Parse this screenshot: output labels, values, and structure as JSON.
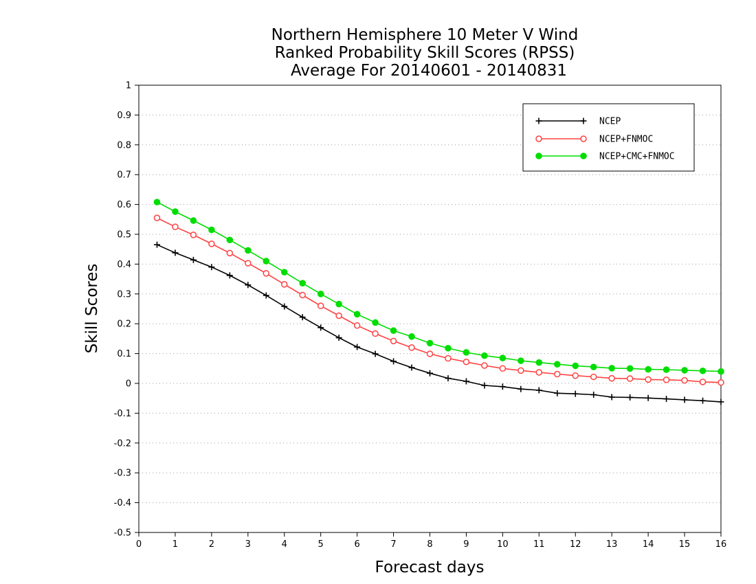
{
  "chart_data": {
    "type": "line",
    "title_lines": [
      "Northern Hemisphere 10 Meter V Wind",
      "Ranked Probability Skill Scores (RPSS)",
      "Average For 20140601 - 20140831"
    ],
    "xlabel": "Forecast days",
    "ylabel": "Skill Scores",
    "xlim": [
      0,
      16
    ],
    "ylim": [
      -0.5,
      1
    ],
    "x_ticks": [
      0,
      1,
      2,
      3,
      4,
      5,
      6,
      7,
      8,
      9,
      10,
      11,
      12,
      13,
      14,
      15,
      16
    ],
    "x_tick_labels": [
      "0",
      "1",
      "2",
      "3",
      "4",
      "5",
      "6",
      "7",
      "8",
      "9",
      "10",
      "11",
      "12",
      "13",
      "14",
      "15",
      "16"
    ],
    "y_ticks": [
      -0.5,
      -0.4,
      -0.3,
      -0.2,
      -0.1,
      0,
      0.1,
      0.2,
      0.3,
      0.4,
      0.5,
      0.6,
      0.7,
      0.8,
      0.9,
      1
    ],
    "y_tick_labels": [
      "-0.5",
      "-0.4",
      "-0.3",
      "-0.2",
      "-0.1",
      "0",
      "0.1",
      "0.2",
      "0.3",
      "0.4",
      "0.5",
      "0.6",
      "0.7",
      "0.8",
      "0.9",
      "1"
    ],
    "grid": "horizontal-dotted",
    "legend_position": "top-right",
    "x": [
      0.5,
      1,
      1.5,
      2,
      2.5,
      3,
      3.5,
      4,
      4.5,
      5,
      5.5,
      6,
      6.5,
      7,
      7.5,
      8,
      8.5,
      9,
      9.5,
      10,
      10.5,
      11,
      11.5,
      12,
      12.5,
      13,
      13.5,
      14,
      14.5,
      15,
      15.5,
      16
    ],
    "series": [
      {
        "name": "NCEP",
        "color": "#000000",
        "marker": "plus",
        "values": [
          0.465,
          0.438,
          0.414,
          0.39,
          0.362,
          0.33,
          0.295,
          0.258,
          0.222,
          0.187,
          0.153,
          0.122,
          0.099,
          0.074,
          0.053,
          0.034,
          0.017,
          0.007,
          -0.007,
          -0.011,
          -0.019,
          -0.023,
          -0.033,
          -0.035,
          -0.038,
          -0.046,
          -0.047,
          -0.049,
          -0.052,
          -0.055,
          -0.058,
          -0.062
        ]
      },
      {
        "name": "NCEP+FNMOC",
        "color": "#ff4040",
        "marker": "open-circle",
        "values": [
          0.555,
          0.525,
          0.498,
          0.468,
          0.437,
          0.403,
          0.369,
          0.332,
          0.296,
          0.26,
          0.227,
          0.194,
          0.167,
          0.142,
          0.12,
          0.099,
          0.084,
          0.072,
          0.06,
          0.05,
          0.043,
          0.037,
          0.031,
          0.026,
          0.022,
          0.017,
          0.016,
          0.013,
          0.012,
          0.01,
          0.005,
          0.003
        ]
      },
      {
        "name": "NCEP+CMC+FNMOC",
        "color": "#00dd00",
        "marker": "filled-circle",
        "values": [
          0.608,
          0.576,
          0.546,
          0.515,
          0.481,
          0.446,
          0.41,
          0.373,
          0.336,
          0.3,
          0.266,
          0.232,
          0.204,
          0.177,
          0.157,
          0.135,
          0.118,
          0.104,
          0.093,
          0.085,
          0.076,
          0.07,
          0.064,
          0.059,
          0.055,
          0.051,
          0.05,
          0.047,
          0.046,
          0.044,
          0.042,
          0.04
        ]
      }
    ]
  }
}
